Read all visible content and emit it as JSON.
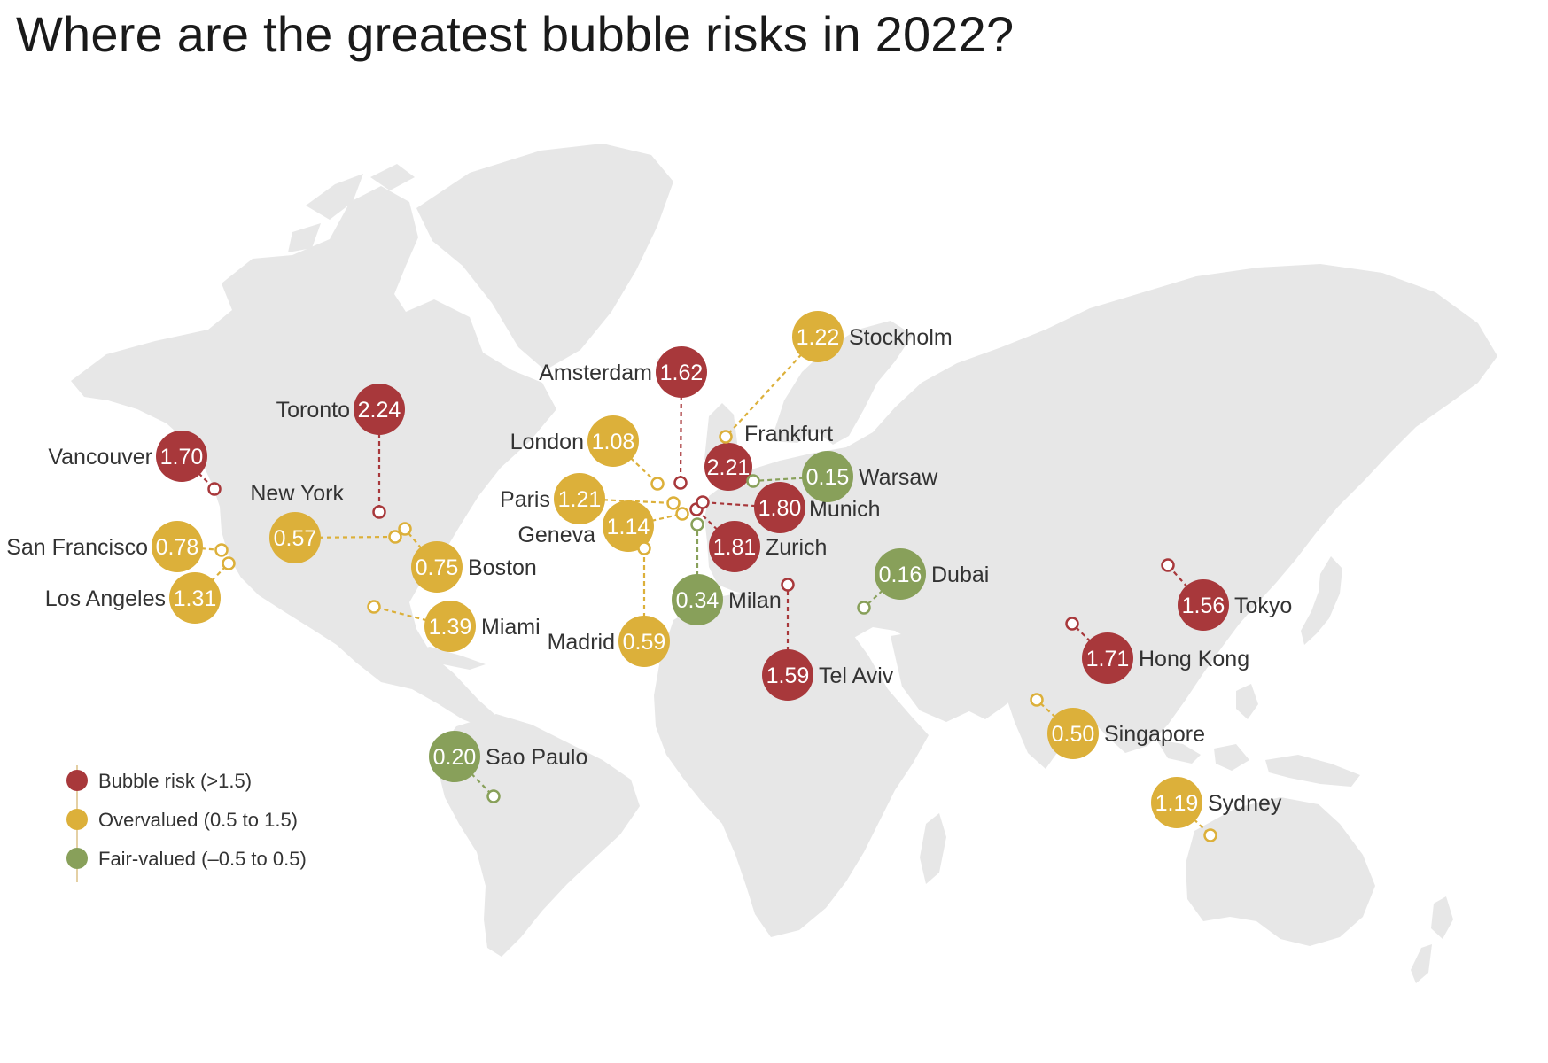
{
  "title": "Where are the greatest bubble risks in 2022?",
  "colors": {
    "bubble_risk": "#a8383b",
    "overvalued": "#dcb03a",
    "fair_valued": "#88a05a",
    "land": "#e7e7e7",
    "text": "#333333"
  },
  "legend": [
    {
      "category": "bubble_risk",
      "label": "Bubble risk (>1.5)"
    },
    {
      "category": "overvalued",
      "label": "Overvalued (0.5 to 1.5)"
    },
    {
      "category": "fair_valued",
      "label": "Fair-valued (–0.5 to 0.5)"
    }
  ],
  "cities": [
    {
      "key": "toronto",
      "name": "Toronto",
      "value": "2.24",
      "category": "bubble_risk"
    },
    {
      "key": "frankfurt",
      "name": "Frankfurt",
      "value": "2.21",
      "category": "bubble_risk"
    },
    {
      "key": "zurich",
      "name": "Zurich",
      "value": "1.81",
      "category": "bubble_risk"
    },
    {
      "key": "munich",
      "name": "Munich",
      "value": "1.80",
      "category": "bubble_risk"
    },
    {
      "key": "hong_kong",
      "name": "Hong Kong",
      "value": "1.71",
      "category": "bubble_risk"
    },
    {
      "key": "vancouver",
      "name": "Vancouver",
      "value": "1.70",
      "category": "bubble_risk"
    },
    {
      "key": "amsterdam",
      "name": "Amsterdam",
      "value": "1.62",
      "category": "bubble_risk"
    },
    {
      "key": "tel_aviv",
      "name": "Tel Aviv",
      "value": "1.59",
      "category": "bubble_risk"
    },
    {
      "key": "tokyo",
      "name": "Tokyo",
      "value": "1.56",
      "category": "bubble_risk"
    },
    {
      "key": "miami",
      "name": "Miami",
      "value": "1.39",
      "category": "overvalued"
    },
    {
      "key": "los_angeles",
      "name": "Los Angeles",
      "value": "1.31",
      "category": "overvalued"
    },
    {
      "key": "stockholm",
      "name": "Stockholm",
      "value": "1.22",
      "category": "overvalued"
    },
    {
      "key": "paris",
      "name": "Paris",
      "value": "1.21",
      "category": "overvalued"
    },
    {
      "key": "sydney",
      "name": "Sydney",
      "value": "1.19",
      "category": "overvalued"
    },
    {
      "key": "geneva",
      "name": "Geneva",
      "value": "1.14",
      "category": "overvalued"
    },
    {
      "key": "london",
      "name": "London",
      "value": "1.08",
      "category": "overvalued"
    },
    {
      "key": "san_francisco",
      "name": "San Francisco",
      "value": "0.78",
      "category": "overvalued"
    },
    {
      "key": "boston",
      "name": "Boston",
      "value": "0.75",
      "category": "overvalued"
    },
    {
      "key": "madrid",
      "name": "Madrid",
      "value": "0.59",
      "category": "overvalued"
    },
    {
      "key": "new_york",
      "name": "New York",
      "value": "0.57",
      "category": "overvalued"
    },
    {
      "key": "singapore",
      "name": "Singapore",
      "value": "0.50",
      "category": "overvalued"
    },
    {
      "key": "milan",
      "name": "Milan",
      "value": "0.34",
      "category": "fair_valued"
    },
    {
      "key": "sao_paulo",
      "name": "Sao Paulo",
      "value": "0.20",
      "category": "fair_valued"
    },
    {
      "key": "dubai",
      "name": "Dubai",
      "value": "0.16",
      "category": "fair_valued"
    },
    {
      "key": "warsaw",
      "name": "Warsaw",
      "value": "0.15",
      "category": "fair_valued"
    }
  ]
}
